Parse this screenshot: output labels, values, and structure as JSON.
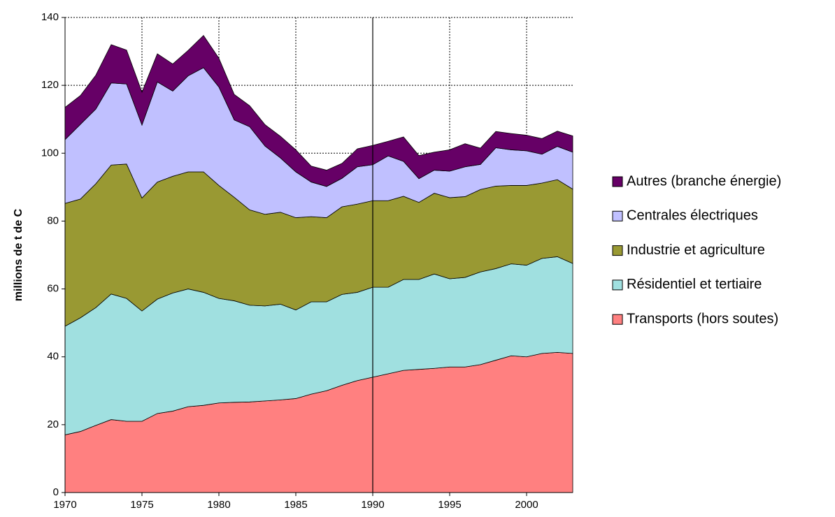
{
  "chart_data": {
    "type": "stacked-area",
    "y_label": "millions de t de C",
    "x": [
      1970,
      1971,
      1972,
      1973,
      1974,
      1975,
      1976,
      1977,
      1978,
      1979,
      1980,
      1981,
      1982,
      1983,
      1984,
      1985,
      1986,
      1987,
      1988,
      1989,
      1990,
      1991,
      1992,
      1993,
      1994,
      1995,
      1996,
      1997,
      1998,
      1999,
      2000,
      2001,
      2002,
      2003
    ],
    "xlim": [
      1970,
      2003
    ],
    "xticks": [
      1970,
      1975,
      1980,
      1985,
      1990,
      1995,
      2000
    ],
    "ylim": [
      0,
      140
    ],
    "yticks": [
      0,
      20,
      40,
      60,
      80,
      100,
      120,
      140
    ],
    "grid": true,
    "vline": 1990,
    "legend": "right",
    "series": [
      {
        "name": "Transports (hors soutes)",
        "color": "#ff8080",
        "values": [
          17,
          18,
          19.8,
          21.5,
          21,
          21,
          23.3,
          24,
          25.3,
          25.7,
          26.4,
          26.6,
          26.7,
          27,
          27.3,
          27.7,
          29,
          30,
          31.6,
          33,
          34,
          35,
          36,
          36.3,
          36.6,
          37,
          37,
          37.7,
          39,
          40.3,
          40,
          41,
          41.3,
          41
        ]
      },
      {
        "name": "Résidentiel et tertiaire",
        "color": "#a0e0e0",
        "values": [
          32,
          33.5,
          34.7,
          37,
          36.2,
          32.5,
          33.7,
          34.8,
          34.7,
          33.3,
          30.8,
          29.9,
          28.5,
          28,
          28.2,
          26.1,
          27.2,
          26.2,
          26.8,
          26,
          26.5,
          25.5,
          26.8,
          26.5,
          27.8,
          26,
          26.4,
          27.3,
          27,
          27.1,
          27,
          28,
          28.2,
          26.5
        ]
      },
      {
        "name": "Industrie et agriculture",
        "color": "#999933",
        "values": [
          36.2,
          35,
          36.5,
          38,
          39.6,
          33.3,
          34.5,
          34.4,
          34.5,
          35.5,
          33.3,
          30.5,
          28.1,
          27,
          27.1,
          27.2,
          25.1,
          24.8,
          25.8,
          26,
          25.5,
          25.5,
          24.5,
          22.7,
          23.8,
          23.9,
          23.8,
          24.3,
          24.3,
          23.1,
          23.5,
          22.2,
          22.7,
          21.9
        ]
      },
      {
        "name": "Centrales électriques",
        "color": "#c0c0ff",
        "values": [
          18.8,
          22,
          22,
          24.2,
          23.6,
          21.5,
          29.5,
          25.1,
          28.3,
          30.7,
          29,
          22.8,
          24.5,
          20.1,
          16,
          13.5,
          10.2,
          9.2,
          8.4,
          11,
          10.6,
          13.2,
          10.3,
          7,
          6.8,
          7.8,
          8.8,
          7.4,
          11.3,
          10.5,
          10.2,
          8.5,
          9.8,
          10.9
        ]
      },
      {
        "name": "Autres (branche énergie)",
        "color": "#660066",
        "values": [
          9.5,
          8.5,
          10,
          11.3,
          10,
          9.7,
          8.3,
          8,
          7.5,
          9.5,
          8.5,
          7.5,
          6.2,
          6.3,
          6.4,
          6.5,
          4.7,
          4.8,
          4.4,
          5.3,
          5.7,
          4.3,
          7.2,
          6.8,
          5.3,
          6.3,
          6.8,
          4.8,
          4.8,
          4.8,
          4.6,
          4.6,
          4.5,
          4.8
        ]
      }
    ]
  }
}
